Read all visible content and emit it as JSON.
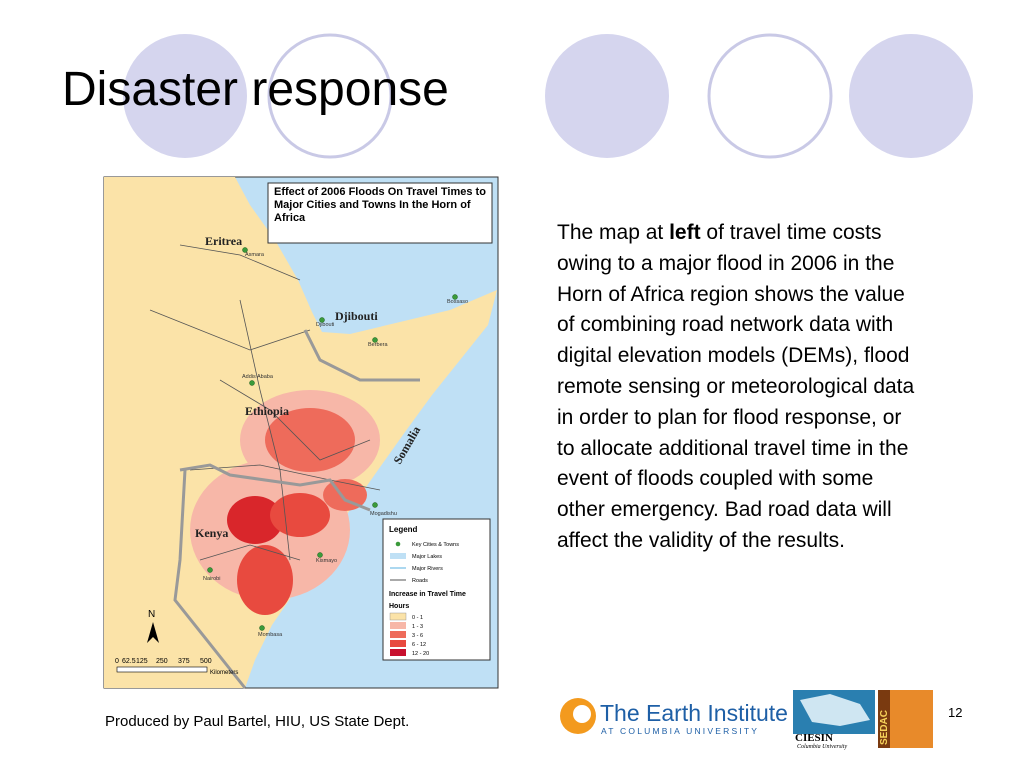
{
  "title": "Disaster response",
  "body": {
    "before": "The map at ",
    "bold": "left",
    "after": " of travel time costs owing to a major flood in 2006 in the Horn of Africa region shows the value of combining road network data with digital elevation models (DEMs), flood remote sensing or meteorological data in order to plan for flood response, or to allocate additional travel time in the event of floods coupled with some other emergency. Bad road data will affect the validity of the results."
  },
  "caption": "Produced by Paul Bartel, HIU, US State Dept.",
  "page_number": "12",
  "map": {
    "title": "Effect of 2006 Floods On Travel Times to Major Cities and Towns In the Horn of Africa",
    "countries": [
      "Eritrea",
      "Djibouti",
      "Ethiopia",
      "Somalia",
      "Kenya"
    ],
    "cities": [
      "Asmara",
      "Djibouti",
      "Bossaso",
      "Berbera",
      "Addis Ababa",
      "Mogadishu",
      "Kismayo",
      "Nairobi",
      "Mombasa"
    ],
    "legend": {
      "title": "Legend",
      "items": [
        "Key Cities & Towns",
        "Major Lakes",
        "Major Rivers",
        "Roads"
      ],
      "subtitle": "Increase in Travel Time",
      "unit": "Hours",
      "classes": [
        "0 - 1",
        "1 - 3",
        "3 - 6",
        "6 - 12",
        "12 - 20"
      ]
    },
    "scale": {
      "ticks": [
        "0",
        "62.5",
        "125",
        "250",
        "375",
        "500"
      ],
      "unit": "Kilometers"
    },
    "north": "N"
  },
  "logos": {
    "earth_institute": "The Earth Institute",
    "earth_institute_sub": "AT COLUMBIA UNIVERSITY",
    "ciesin": "CIESIN",
    "ciesin_sub": "Columbia University",
    "sedac": "SEDAC"
  }
}
